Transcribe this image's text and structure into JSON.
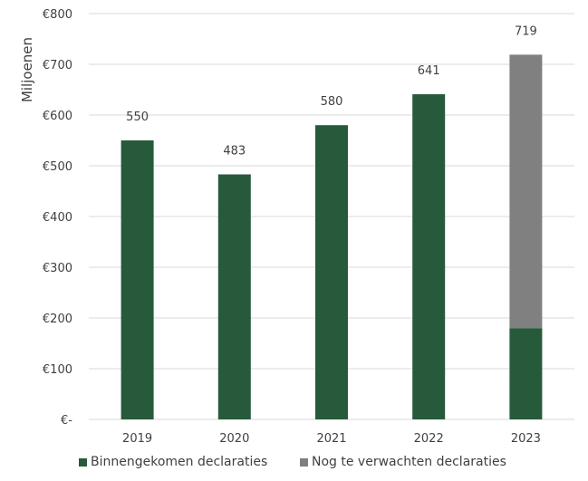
{
  "chart_data": {
    "type": "bar",
    "stacked": true,
    "categories": [
      "2019",
      "2020",
      "2021",
      "2022",
      "2023"
    ],
    "series": [
      {
        "name": "Binnengekomen declaraties",
        "values": [
          550,
          483,
          580,
          641,
          180
        ],
        "color": "#275a3b"
      },
      {
        "name": "Nog te verwachten declaraties",
        "values": [
          0,
          0,
          0,
          0,
          539
        ],
        "color": "#808080"
      }
    ],
    "totals": [
      550,
      483,
      580,
      641,
      719
    ],
    "total_labels": [
      "550",
      "483",
      "580",
      "641",
      "719"
    ],
    "ylabel": "Miljoenen",
    "ylim": [
      0,
      800
    ],
    "y_ticks": [
      0,
      100,
      200,
      300,
      400,
      500,
      600,
      700,
      800
    ],
    "y_tick_labels": [
      "€-",
      "€100",
      "€200",
      "€300",
      "€400",
      "€500",
      "€600",
      "€700",
      "€800"
    ],
    "grid": true,
    "legend_position": "bottom"
  }
}
